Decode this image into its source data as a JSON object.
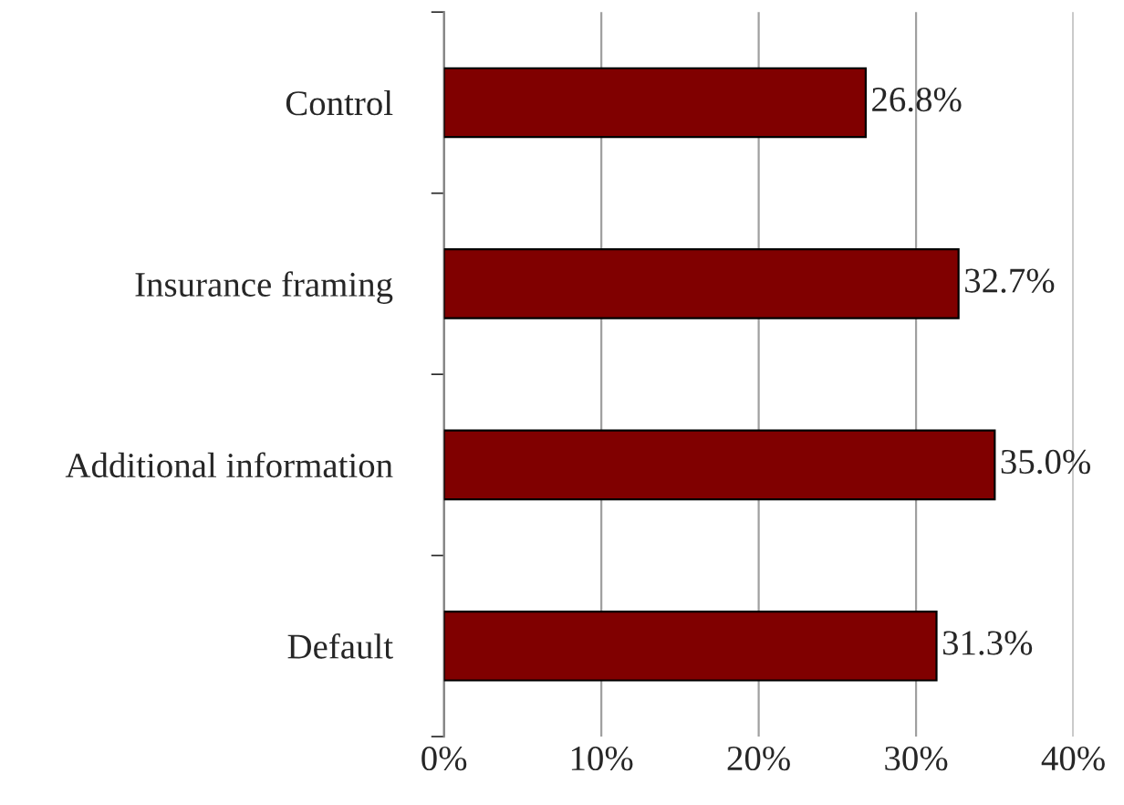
{
  "chart_data": {
    "type": "bar",
    "orientation": "horizontal",
    "categories": [
      "Control",
      "Insurance framing",
      "Additional information",
      "Default"
    ],
    "values": [
      26.8,
      32.7,
      35.0,
      31.3
    ],
    "value_labels": [
      "26.8%",
      "32.7%",
      "35.0%",
      "31.3%"
    ],
    "color": "#800000",
    "xlim": [
      0,
      40
    ],
    "xticks": [
      {
        "value": 0,
        "label": "0%"
      },
      {
        "value": 10,
        "label": "10%"
      },
      {
        "value": 20,
        "label": "20%"
      },
      {
        "value": 30,
        "label": "30%"
      },
      {
        "value": 40,
        "label": "40%"
      }
    ],
    "grid": "x",
    "legend": false
  }
}
